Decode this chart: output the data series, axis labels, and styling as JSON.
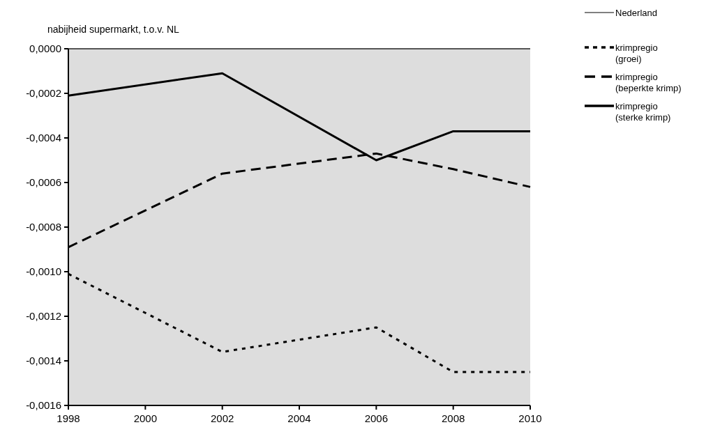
{
  "chart_data": {
    "type": "line",
    "title": "nabijheid supermarkt, t.o.v. NL",
    "x": [
      1998,
      2002,
      2006,
      2008,
      2010
    ],
    "xlim": [
      1998,
      2010
    ],
    "xticks": [
      1998,
      2000,
      2002,
      2004,
      2006,
      2008,
      2010
    ],
    "ylim": [
      -0.0016,
      0
    ],
    "yticks": [
      {
        "value": 0,
        "label": "0,0000"
      },
      {
        "value": -0.0002,
        "label": "-0,0002"
      },
      {
        "value": -0.0004,
        "label": "-0,0004"
      },
      {
        "value": -0.0006,
        "label": "-0,0006"
      },
      {
        "value": -0.0008,
        "label": "-0,0008"
      },
      {
        "value": -0.001,
        "label": "-0,0010"
      },
      {
        "value": -0.0012,
        "label": "-0,0012"
      },
      {
        "value": -0.0014,
        "label": "-0,0014"
      },
      {
        "value": -0.0016,
        "label": "-0,0016"
      }
    ],
    "series": [
      {
        "name": "Nederland",
        "color": "#000000",
        "line_style": "solid",
        "values": [
          0,
          0,
          0,
          0,
          0
        ]
      },
      {
        "name": "krimpregio (groei)",
        "color": "#000000",
        "line_style": "dotted",
        "values": [
          -0.00101,
          -0.00136,
          -0.00125,
          -0.00145,
          -0.00145
        ]
      },
      {
        "name": "krimpregio (beperkte krimp)",
        "color": "#000000",
        "line_style": "dashed",
        "values": [
          -0.00089,
          -0.00056,
          -0.00047,
          -0.00054,
          -0.00062
        ]
      },
      {
        "name": "krimpregio (sterke krimp)",
        "color": "#000000",
        "line_style": "solid",
        "values": [
          -0.00021,
          -0.00011,
          -0.0005,
          -0.00037,
          -0.00037
        ]
      }
    ],
    "grid": false,
    "legend": "right",
    "marker": "none"
  }
}
